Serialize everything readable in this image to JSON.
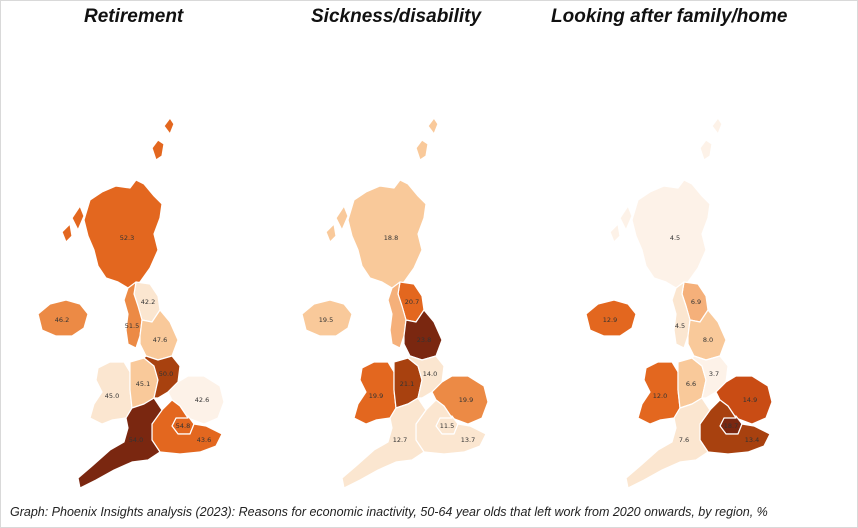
{
  "panels": [
    {
      "title": "Retirement",
      "regions": {
        "scotland": {
          "value": "52.3",
          "color": "#e3671f"
        },
        "northern_ireland": {
          "value": "46.2",
          "color": "#ec8a45"
        },
        "north_east": {
          "value": "42.2",
          "color": "#fbe6d0"
        },
        "north_west": {
          "value": "51.5",
          "color": "#ec8a45"
        },
        "yorkshire": {
          "value": "47.6",
          "color": "#f9c99a"
        },
        "wales": {
          "value": "45.0",
          "color": "#fbe6d0"
        },
        "west_midlands": {
          "value": "45.1",
          "color": "#f9c99a"
        },
        "east_midlands": {
          "value": "50.0",
          "color": "#a8410f"
        },
        "east": {
          "value": "42.6",
          "color": "#fdf2e8"
        },
        "london": {
          "value": "54.8",
          "color": "#e3671f"
        },
        "south_east": {
          "value": "43.6",
          "color": "#e3671f"
        },
        "south_west": {
          "value": "54.0",
          "color": "#7a2710"
        }
      }
    },
    {
      "title": "Sickness/disability",
      "regions": {
        "scotland": {
          "value": "18.8",
          "color": "#f9c99a"
        },
        "northern_ireland": {
          "value": "19.5",
          "color": "#f9c99a"
        },
        "north_east": {
          "value": "20.7",
          "color": "#e3671f"
        },
        "north_west": {
          "value": "",
          "color": "#f5b07a"
        },
        "yorkshire": {
          "value": "23.8",
          "color": "#7a2710"
        },
        "wales": {
          "value": "19.9",
          "color": "#e3671f"
        },
        "west_midlands": {
          "value": "21.1",
          "color": "#a8410f"
        },
        "east_midlands": {
          "value": "14.0",
          "color": "#fbe6d0"
        },
        "east": {
          "value": "19.9",
          "color": "#ec8a45"
        },
        "london": {
          "value": "11.5",
          "color": "#fbe6d0"
        },
        "south_east": {
          "value": "13.7",
          "color": "#fbe6d0"
        },
        "south_west": {
          "value": "12.7",
          "color": "#fbe6d0"
        }
      }
    },
    {
      "title": "Looking after family/home",
      "regions": {
        "scotland": {
          "value": "4.5",
          "color": "#fdf2e8"
        },
        "northern_ireland": {
          "value": "12.9",
          "color": "#e3671f"
        },
        "north_east": {
          "value": "6.9",
          "color": "#f5b07a"
        },
        "north_west": {
          "value": "4.5",
          "color": "#fbe6d0"
        },
        "yorkshire": {
          "value": "8.0",
          "color": "#f9c99a"
        },
        "wales": {
          "value": "12.0",
          "color": "#e3671f"
        },
        "west_midlands": {
          "value": "6.6",
          "color": "#f9c99a"
        },
        "east_midlands": {
          "value": "3.7",
          "color": "#fdf2e8"
        },
        "east": {
          "value": "14.9",
          "color": "#c94c14"
        },
        "london": {
          "value": "18.7",
          "color": "#7a2710"
        },
        "south_east": {
          "value": "13.4",
          "color": "#a8410f"
        },
        "south_west": {
          "value": "7.6",
          "color": "#fbe6d0"
        }
      }
    }
  ],
  "caption": "Graph: Phoenix Insights analysis (2023): Reasons for economic inactivity, 50-64 year olds that left work from 2020 onwards, by region, %"
}
